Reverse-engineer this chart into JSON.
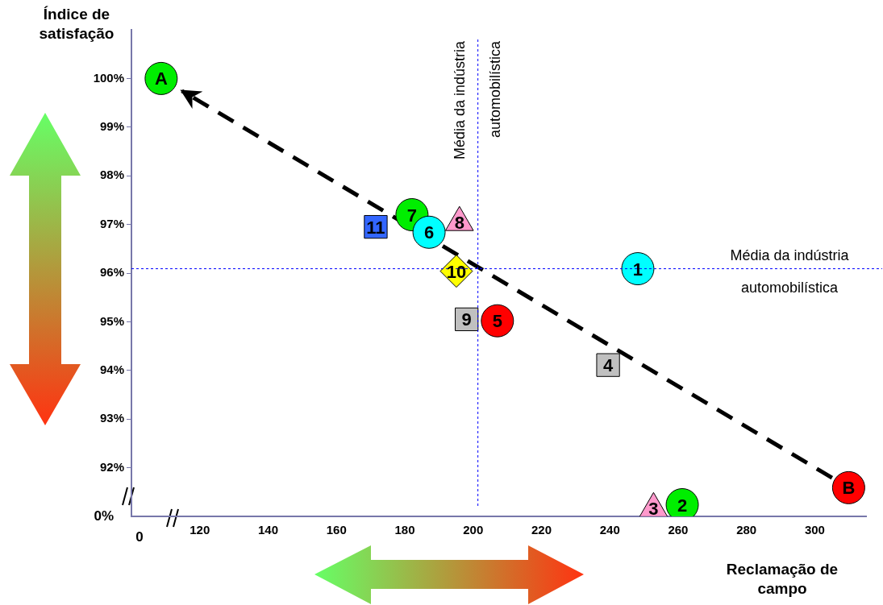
{
  "chart_data": {
    "type": "scatter",
    "xlabel": "Reclamação de campo",
    "ylabel": "Índice de satisfação",
    "annotations": [
      "0%",
      "0"
    ],
    "xlim": [
      100,
      315
    ],
    "xticks": [
      120,
      140,
      160,
      180,
      200,
      220,
      240,
      260,
      280,
      300
    ],
    "ylim": [
      91,
      101
    ],
    "yticks": [
      {
        "value": 91,
        "label": null
      },
      {
        "value": 92,
        "label": "92%"
      },
      {
        "value": 93,
        "label": "93%"
      },
      {
        "value": 94,
        "label": "94%"
      },
      {
        "value": 95,
        "label": "95%"
      },
      {
        "value": 96,
        "label": "96%"
      },
      {
        "value": 97,
        "label": "97%"
      },
      {
        "value": 98,
        "label": "98%"
      },
      {
        "value": 99,
        "label": "99%"
      },
      {
        "value": 100,
        "label": "100%"
      }
    ],
    "grid": false,
    "legend": false,
    "ref_lines": [
      {
        "axis": "y",
        "value": 96.09,
        "label": "Média da indústria automobilística",
        "color": "#0000ff",
        "line_style": "dotted"
      },
      {
        "axis": "x",
        "value": 201.4,
        "label": "Média da indústria automobilística",
        "color": "#0000ff",
        "line_style": "dotted"
      }
    ],
    "series": [
      {
        "name": "A",
        "color": "#00ee00",
        "marker": "circle",
        "x": [
          108.7
        ],
        "values": [
          100.0
        ]
      },
      {
        "name": "B",
        "color": "#ff0000",
        "marker": "circle",
        "x": [
          309.9
        ],
        "values": [
          91.59
        ]
      },
      {
        "name": "1",
        "color": "#00ffff",
        "marker": "circle",
        "x": [
          248.2
        ],
        "values": [
          96.09
        ]
      },
      {
        "name": "2",
        "color": "#00ee00",
        "marker": "circle",
        "x": [
          261.2
        ],
        "values": [
          91.24
        ]
      },
      {
        "name": "3",
        "color": "#ff99cc",
        "marker": "triangle",
        "x": [
          252.8
        ],
        "values": [
          91.16
        ]
      },
      {
        "name": "4",
        "color": "#c0c0c0",
        "marker": "square",
        "x": [
          239.5
        ],
        "values": [
          94.11
        ]
      },
      {
        "name": "5",
        "color": "#ff0000",
        "marker": "circle",
        "x": [
          207.1
        ],
        "values": [
          95.02
        ]
      },
      {
        "name": "6",
        "color": "#00ffff",
        "marker": "circle",
        "x": [
          187.1
        ],
        "values": [
          96.84
        ]
      },
      {
        "name": "7",
        "color": "#00ee00",
        "marker": "circle",
        "x": [
          182.1
        ],
        "values": [
          97.2
        ]
      },
      {
        "name": "8",
        "color": "#ff99cc",
        "marker": "triangle",
        "x": [
          196.0
        ],
        "values": [
          97.04
        ]
      },
      {
        "name": "9",
        "color": "#c0c0c0",
        "marker": "square",
        "x": [
          198.1
        ],
        "values": [
          95.05
        ]
      },
      {
        "name": "10",
        "color": "#ffff00",
        "marker": "diamond",
        "x": [
          195.1
        ],
        "values": [
          96.04
        ]
      },
      {
        "name": "11",
        "color": "#3366ff",
        "marker": "square",
        "x": [
          171.5
        ],
        "values": [
          96.95
        ]
      }
    ]
  }
}
